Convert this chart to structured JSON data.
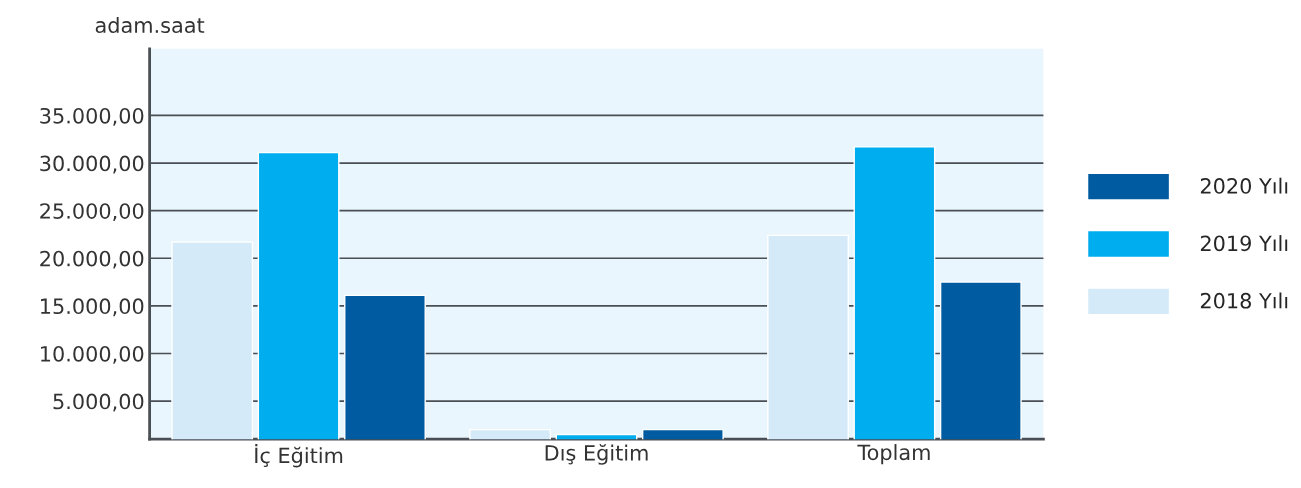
{
  "chart_data": {
    "type": "bar",
    "ylabel": "adam.saat",
    "categories": [
      "İç Eğitim",
      "Dış Eğitim",
      "Toplam"
    ],
    "series": [
      {
        "name": "2018 Yılı",
        "color": "#d4eaf9",
        "values": [
          21700,
          2000,
          22400
        ]
      },
      {
        "name": "2019 Yılı",
        "color": "#00adee",
        "values": [
          31100,
          1500,
          31700
        ]
      },
      {
        "name": "2020 Yılı",
        "color": "#005ba1",
        "values": [
          16100,
          2000,
          17500
        ]
      }
    ],
    "ylim": [
      1000,
      42000
    ],
    "yticks": [
      {
        "value": 5000,
        "label": "5.000,00"
      },
      {
        "value": 10000,
        "label": "10.000,00"
      },
      {
        "value": 15000,
        "label": "15.000,00"
      },
      {
        "value": 20000,
        "label": "20.000,00"
      },
      {
        "value": 25000,
        "label": "25.000,00"
      },
      {
        "value": 30000,
        "label": "30.000,00"
      },
      {
        "value": 35000,
        "label": "35.000,00"
      }
    ],
    "grid": "y",
    "legend": "right"
  }
}
